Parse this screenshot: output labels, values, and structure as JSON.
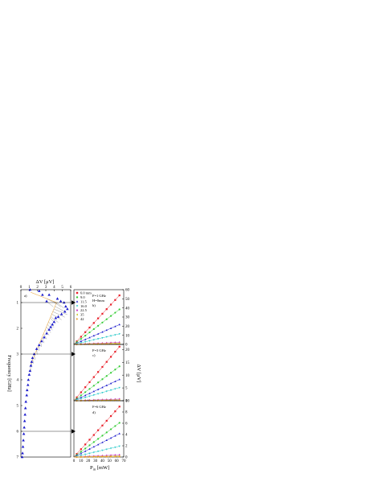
{
  "chart_data": [
    {
      "panel": "a)",
      "type": "scatter",
      "xlabel": "ΔV [μV]",
      "ylabel": "Frequency [GHz]",
      "xlim": [
        0,
        6
      ],
      "ylim": [
        7,
        0.5
      ],
      "xticks": [
        "0",
        "1",
        "2",
        "3",
        "4",
        "5",
        "6"
      ],
      "yticks": [
        "1",
        "2",
        "3",
        "4",
        "5",
        "6",
        "7"
      ],
      "marker": "triangle",
      "color": "#1a1acc",
      "points": [
        {
          "x": 1.1,
          "y": 0.5
        },
        {
          "x": 2.2,
          "y": 0.55
        },
        {
          "x": 2.6,
          "y": 0.7
        },
        {
          "x": 3.4,
          "y": 0.7
        },
        {
          "x": 4.4,
          "y": 0.85
        },
        {
          "x": 3.1,
          "y": 0.95
        },
        {
          "x": 4.8,
          "y": 0.95
        },
        {
          "x": 5.2,
          "y": 1.0
        },
        {
          "x": 5.4,
          "y": 1.15
        },
        {
          "x": 5.6,
          "y": 1.25
        },
        {
          "x": 5.3,
          "y": 1.35
        },
        {
          "x": 4.9,
          "y": 1.45
        },
        {
          "x": 4.5,
          "y": 1.55
        },
        {
          "x": 4.2,
          "y": 1.6
        },
        {
          "x": 4.0,
          "y": 1.75
        },
        {
          "x": 3.8,
          "y": 1.85
        },
        {
          "x": 3.6,
          "y": 1.95
        },
        {
          "x": 3.4,
          "y": 2.05
        },
        {
          "x": 3.1,
          "y": 2.2
        },
        {
          "x": 2.8,
          "y": 2.35
        },
        {
          "x": 2.5,
          "y": 2.5
        },
        {
          "x": 2.2,
          "y": 2.65
        },
        {
          "x": 1.9,
          "y": 2.8
        },
        {
          "x": 1.6,
          "y": 3.0
        },
        {
          "x": 1.4,
          "y": 3.15
        },
        {
          "x": 1.3,
          "y": 3.3
        },
        {
          "x": 1.2,
          "y": 3.45
        },
        {
          "x": 1.1,
          "y": 3.65
        },
        {
          "x": 1.0,
          "y": 3.8
        },
        {
          "x": 0.9,
          "y": 4.0
        },
        {
          "x": 0.85,
          "y": 4.2
        },
        {
          "x": 0.75,
          "y": 4.4
        },
        {
          "x": 0.7,
          "y": 4.6
        },
        {
          "x": 0.6,
          "y": 4.85
        },
        {
          "x": 0.55,
          "y": 5.1
        },
        {
          "x": 0.5,
          "y": 5.35
        },
        {
          "x": 0.45,
          "y": 5.6
        },
        {
          "x": 0.4,
          "y": 5.85
        },
        {
          "x": 0.35,
          "y": 6.1
        },
        {
          "x": 0.3,
          "y": 6.35
        },
        {
          "x": 0.25,
          "y": 6.6
        },
        {
          "x": 0.2,
          "y": 6.85
        },
        {
          "x": 0.15,
          "y": 7.0
        }
      ],
      "arrow_frequencies": [
        1,
        3,
        6
      ]
    },
    {
      "panel": "b)",
      "type": "scatter",
      "frequency_label": "F=1 GHz",
      "extra_label": "H=0mm",
      "xlim": [
        0,
        70
      ],
      "ylim": [
        0,
        60
      ],
      "yticks": [
        "0",
        "10",
        "20",
        "30",
        "40",
        "50",
        "60"
      ],
      "series": [
        {
          "name": "6.0 mm",
          "color": "#e8202a",
          "marker": "square",
          "slope": 0.84
        },
        {
          "name": "9.0",
          "color": "#33cc33",
          "marker": "circle",
          "slope": 0.6
        },
        {
          "name": "11.5",
          "color": "#1a1acc",
          "marker": "triangle",
          "slope": 0.34
        },
        {
          "name": "16.0",
          "color": "#33cccc",
          "marker": "triangle-down",
          "slope": 0.18
        },
        {
          "name": "22.5",
          "color": "#cc33cc",
          "marker": "diamond",
          "slope": 0.035
        },
        {
          "name": "35",
          "color": "#cccc33",
          "marker": "triangle-left",
          "slope": 0.02
        },
        {
          "name": "42",
          "color": "#e89a20",
          "marker": "triangle-right",
          "slope": 0.01
        }
      ]
    },
    {
      "panel": "c)",
      "type": "scatter",
      "frequency_label": "F=3 GHz",
      "xlim": [
        0,
        70
      ],
      "ylim": [
        0,
        22
      ],
      "yticks": [
        "0",
        "5",
        "10",
        "15",
        "20"
      ],
      "series": [
        {
          "name": "6.0 mm",
          "color": "#e8202a",
          "marker": "square",
          "slope": 0.33
        },
        {
          "name": "9.0",
          "color": "#33cc33",
          "marker": "circle",
          "slope": 0.21
        },
        {
          "name": "11.5",
          "color": "#1a1acc",
          "marker": "triangle",
          "slope": 0.13
        },
        {
          "name": "16.0",
          "color": "#33cccc",
          "marker": "triangle-down",
          "slope": 0.08
        },
        {
          "name": "22.5",
          "color": "#cc33cc",
          "marker": "diamond",
          "slope": 0.01
        },
        {
          "name": "35",
          "color": "#cccc33",
          "marker": "triangle-left",
          "slope": 0.005
        },
        {
          "name": "42",
          "color": "#e89a20",
          "marker": "triangle-right",
          "slope": 0.002
        }
      ]
    },
    {
      "panel": "d)",
      "type": "scatter",
      "frequency_label": "F=6 GHz",
      "xlabel": "P_in [mW]",
      "ylabel": "ΔV [μV]",
      "xlim": [
        0,
        70
      ],
      "ylim": [
        0,
        10
      ],
      "xticks": [
        "0",
        "10",
        "20",
        "30",
        "40",
        "50",
        "60",
        "70"
      ],
      "yticks": [
        "0",
        "2",
        "4",
        "6",
        "8",
        "10"
      ],
      "series": [
        {
          "name": "6.0 mm",
          "color": "#e8202a",
          "marker": "square",
          "slope": 0.14
        },
        {
          "name": "9.0",
          "color": "#33cc33",
          "marker": "circle",
          "slope": 0.095
        },
        {
          "name": "11.5",
          "color": "#1a1acc",
          "marker": "triangle",
          "slope": 0.065
        },
        {
          "name": "16.0",
          "color": "#33cccc",
          "marker": "triangle-down",
          "slope": 0.03
        },
        {
          "name": "22.5",
          "color": "#cc33cc",
          "marker": "diamond",
          "slope": 0.006
        },
        {
          "name": "35",
          "color": "#cccc33",
          "marker": "triangle-left",
          "slope": 0.003
        },
        {
          "name": "42",
          "color": "#e89a20",
          "marker": "triangle-right",
          "slope": 0.001
        }
      ]
    }
  ],
  "text": {
    "top_xlabel": "ΔV [μV]",
    "left_ylabel": "Frequency [GHz]",
    "right_ylabel": "ΔV [μV]",
    "bottom_xlabel_main": "P",
    "bottom_xlabel_sub": "in",
    "bottom_xlabel_unit": " [mW]",
    "panel_a": "a)",
    "panel_b": "b)",
    "panel_c": "c)",
    "panel_d": "d)",
    "f1": "F=1 GHz",
    "h0": "H=0mm",
    "f3": "F=3 GHz",
    "f6": "F=6 GHz"
  }
}
